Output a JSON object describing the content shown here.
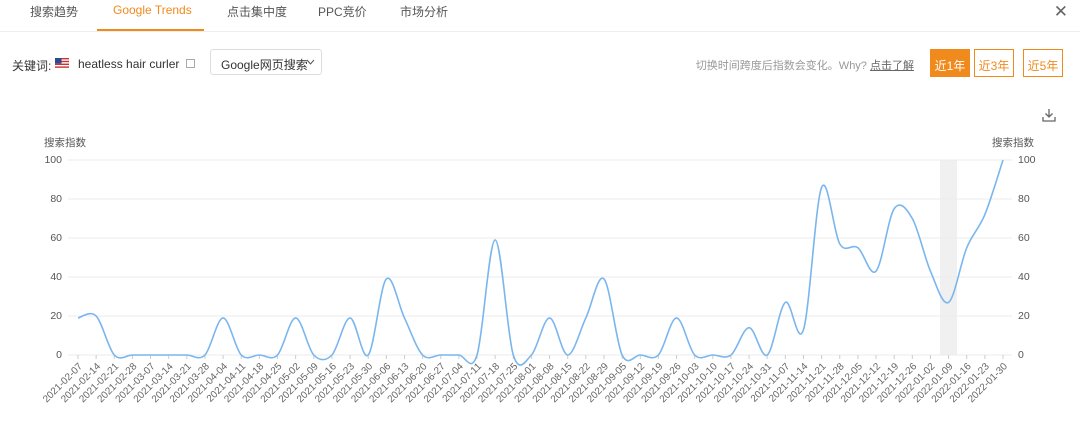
{
  "tabs": [
    "搜索趋势",
    "Google Trends",
    "点击集中度",
    "PPC竞价",
    "市场分析"
  ],
  "keyword_label": "关键词:",
  "keyword": "heatless hair curler",
  "search_type": "Google网页搜索",
  "notice": "切换时间跨度后指数会变化。Why?",
  "notice_link": "点击了解",
  "ranges": [
    "近1年",
    "近3年",
    "近5年"
  ],
  "chart_data": {
    "type": "line",
    "y_label": "搜索指数",
    "y2_label": "搜索指数",
    "x": [
      "2021-02-07",
      "2021-02-14",
      "2021-02-21",
      "2021-02-28",
      "2021-03-07",
      "2021-03-14",
      "2021-03-21",
      "2021-03-28",
      "2021-04-04",
      "2021-04-11",
      "2021-04-18",
      "2021-04-25",
      "2021-05-02",
      "2021-05-09",
      "2021-05-16",
      "2021-05-23",
      "2021-05-30",
      "2021-06-06",
      "2021-06-13",
      "2021-06-20",
      "2021-06-27",
      "2021-07-04",
      "2021-07-11",
      "2021-07-18",
      "2021-07-25",
      "2021-08-01",
      "2021-08-08",
      "2021-08-15",
      "2021-08-22",
      "2021-08-29",
      "2021-09-05",
      "2021-09-12",
      "2021-09-19",
      "2021-09-26",
      "2021-10-03",
      "2021-10-10",
      "2021-10-17",
      "2021-10-24",
      "2021-10-31",
      "2021-11-07",
      "2021-11-14",
      "2021-11-21",
      "2021-11-28",
      "2021-12-05",
      "2021-12-12",
      "2021-12-19",
      "2021-12-26",
      "2022-01-02",
      "2022-01-09",
      "2022-01-16",
      "2022-01-23",
      "2022-01-30"
    ],
    "values": [
      19,
      20,
      0,
      0,
      0,
      0,
      0,
      0,
      19,
      0,
      0,
      0,
      19,
      0,
      0,
      19,
      0,
      39,
      19,
      0,
      0,
      0,
      0,
      59,
      0,
      0,
      19,
      0,
      19,
      39,
      0,
      0,
      0,
      19,
      0,
      0,
      0,
      14,
      0,
      27,
      13,
      86,
      57,
      55,
      43,
      75,
      70,
      43,
      27,
      55,
      72,
      100
    ],
    "color": "#7ab6ee",
    "ylim": [
      0,
      100
    ],
    "yticks": [
      0,
      20,
      40,
      60,
      80,
      100
    ],
    "grid": true
  }
}
